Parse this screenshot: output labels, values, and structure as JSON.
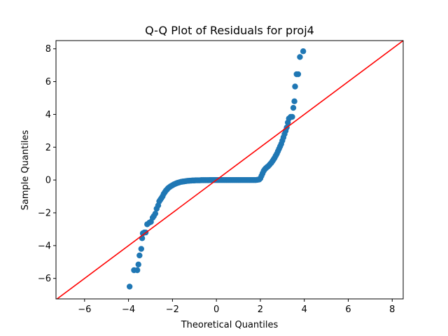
{
  "chart_data": {
    "type": "scatter",
    "title": "Q-Q Plot of Residuals for proj4",
    "xlabel": "Theoretical Quantiles",
    "ylabel": "Sample Quantiles",
    "xlim": [
      -7.3,
      8.5
    ],
    "ylim": [
      -7.25,
      8.5
    ],
    "xticks": [
      -6,
      -4,
      -2,
      0,
      2,
      4,
      6,
      8
    ],
    "yticks": [
      -6,
      -4,
      -2,
      0,
      2,
      4,
      6,
      8
    ],
    "xtick_labels": [
      "−6",
      "−4",
      "−2",
      "0",
      "2",
      "4",
      "6",
      "8"
    ],
    "ytick_labels": [
      "−6",
      "−4",
      "−2",
      "0",
      "2",
      "4",
      "6",
      "8"
    ],
    "grid": false,
    "point_color": "#1f77b4",
    "line_color": "#ff0000",
    "reference_line": {
      "slope": 1,
      "intercept": 0
    },
    "series": [
      {
        "values": [
          [
            -3.95,
            -6.5
          ],
          [
            -3.75,
            -5.5
          ],
          [
            -3.6,
            -5.5
          ],
          [
            -3.55,
            -5.15
          ],
          [
            -3.5,
            -4.6
          ],
          [
            -3.42,
            -4.2
          ],
          [
            -3.38,
            -3.55
          ],
          [
            -3.35,
            -3.25
          ],
          [
            -3.28,
            -3.2
          ],
          [
            -3.22,
            -3.2
          ],
          [
            -3.15,
            -2.7
          ],
          [
            -3.05,
            -2.6
          ],
          [
            -2.98,
            -2.55
          ],
          [
            -2.9,
            -2.3
          ],
          [
            -2.85,
            -2.2
          ],
          [
            -2.78,
            -2.05
          ],
          [
            -2.72,
            -1.75
          ],
          [
            -2.65,
            -1.55
          ],
          [
            -2.6,
            -1.3
          ],
          [
            -2.55,
            -1.2
          ],
          [
            -2.5,
            -1.1
          ],
          [
            -2.45,
            -1.0
          ],
          [
            -2.4,
            -0.85
          ],
          [
            -2.35,
            -0.75
          ],
          [
            -2.3,
            -0.65
          ],
          [
            -2.25,
            -0.58
          ],
          [
            -2.2,
            -0.5
          ],
          [
            -2.15,
            -0.45
          ],
          [
            -2.1,
            -0.4
          ],
          [
            -2.05,
            -0.36
          ],
          [
            -2.0,
            -0.32
          ],
          [
            -1.95,
            -0.28
          ],
          [
            -1.9,
            -0.25
          ],
          [
            -1.85,
            -0.22
          ],
          [
            -1.8,
            -0.19
          ],
          [
            -1.75,
            -0.17
          ],
          [
            -1.7,
            -0.15
          ],
          [
            -1.65,
            -0.13
          ],
          [
            -1.6,
            -0.11
          ],
          [
            -1.55,
            -0.1
          ],
          [
            -1.5,
            -0.09
          ],
          [
            -1.45,
            -0.08
          ],
          [
            -1.4,
            -0.07
          ],
          [
            -1.35,
            -0.06
          ],
          [
            -1.3,
            -0.05
          ],
          [
            -1.25,
            -0.05
          ],
          [
            -1.2,
            -0.04
          ],
          [
            -1.15,
            -0.04
          ],
          [
            -1.1,
            -0.03
          ],
          [
            -1.05,
            -0.03
          ],
          [
            -1.0,
            -0.03
          ],
          [
            -0.95,
            -0.02
          ],
          [
            -0.9,
            -0.02
          ],
          [
            -0.85,
            -0.02
          ],
          [
            -0.8,
            -0.02
          ],
          [
            -0.75,
            -0.02
          ],
          [
            -0.7,
            -0.01
          ],
          [
            -0.65,
            -0.01
          ],
          [
            -0.6,
            -0.01
          ],
          [
            -0.55,
            -0.01
          ],
          [
            -0.5,
            -0.01
          ],
          [
            -0.45,
            -0.01
          ],
          [
            -0.4,
            -0.01
          ],
          [
            -0.35,
            -0.01
          ],
          [
            -0.3,
            0.0
          ],
          [
            -0.25,
            0.0
          ],
          [
            -0.2,
            0.0
          ],
          [
            -0.15,
            0.0
          ],
          [
            -0.1,
            0.0
          ],
          [
            -0.05,
            0.0
          ],
          [
            0.0,
            0.0
          ],
          [
            0.05,
            0.0
          ],
          [
            0.1,
            0.0
          ],
          [
            0.15,
            0.0
          ],
          [
            0.2,
            0.0
          ],
          [
            0.25,
            0.0
          ],
          [
            0.3,
            0.0
          ],
          [
            0.35,
            0.0
          ],
          [
            0.4,
            0.0
          ],
          [
            0.45,
            0.0
          ],
          [
            0.5,
            0.0
          ],
          [
            0.55,
            0.0
          ],
          [
            0.6,
            0.0
          ],
          [
            0.65,
            0.0
          ],
          [
            0.7,
            0.0
          ],
          [
            0.75,
            0.0
          ],
          [
            0.8,
            0.0
          ],
          [
            0.85,
            0.0
          ],
          [
            0.9,
            0.0
          ],
          [
            0.95,
            0.0
          ],
          [
            1.0,
            0.0
          ],
          [
            1.05,
            0.0
          ],
          [
            1.1,
            0.0
          ],
          [
            1.15,
            0.0
          ],
          [
            1.2,
            0.0
          ],
          [
            1.25,
            0.0
          ],
          [
            1.3,
            0.0
          ],
          [
            1.35,
            0.0
          ],
          [
            1.4,
            0.0
          ],
          [
            1.45,
            0.0
          ],
          [
            1.5,
            0.0
          ],
          [
            1.55,
            0.0
          ],
          [
            1.6,
            0.0
          ],
          [
            1.65,
            0.0
          ],
          [
            1.7,
            0.0
          ],
          [
            1.75,
            0.0
          ],
          [
            1.8,
            0.0
          ],
          [
            1.85,
            0.01
          ],
          [
            1.9,
            0.02
          ],
          [
            1.95,
            0.03
          ],
          [
            2.0,
            0.1
          ],
          [
            2.05,
            0.25
          ],
          [
            2.1,
            0.4
          ],
          [
            2.15,
            0.55
          ],
          [
            2.2,
            0.65
          ],
          [
            2.25,
            0.72
          ],
          [
            2.3,
            0.78
          ],
          [
            2.35,
            0.83
          ],
          [
            2.4,
            0.9
          ],
          [
            2.45,
            0.98
          ],
          [
            2.5,
            1.05
          ],
          [
            2.55,
            1.15
          ],
          [
            2.6,
            1.25
          ],
          [
            2.65,
            1.35
          ],
          [
            2.7,
            1.48
          ],
          [
            2.75,
            1.6
          ],
          [
            2.8,
            1.75
          ],
          [
            2.85,
            1.9
          ],
          [
            2.9,
            2.05
          ],
          [
            2.95,
            2.2
          ],
          [
            3.0,
            2.4
          ],
          [
            3.05,
            2.6
          ],
          [
            3.1,
            2.8
          ],
          [
            3.15,
            3.0
          ],
          [
            3.2,
            3.2
          ],
          [
            3.25,
            3.5
          ],
          [
            3.3,
            3.75
          ],
          [
            3.38,
            3.85
          ],
          [
            3.45,
            3.85
          ],
          [
            3.5,
            4.4
          ],
          [
            3.55,
            4.8
          ],
          [
            3.58,
            5.7
          ],
          [
            3.65,
            6.45
          ],
          [
            3.72,
            6.45
          ],
          [
            3.8,
            7.5
          ],
          [
            3.95,
            7.85
          ]
        ]
      }
    ]
  }
}
